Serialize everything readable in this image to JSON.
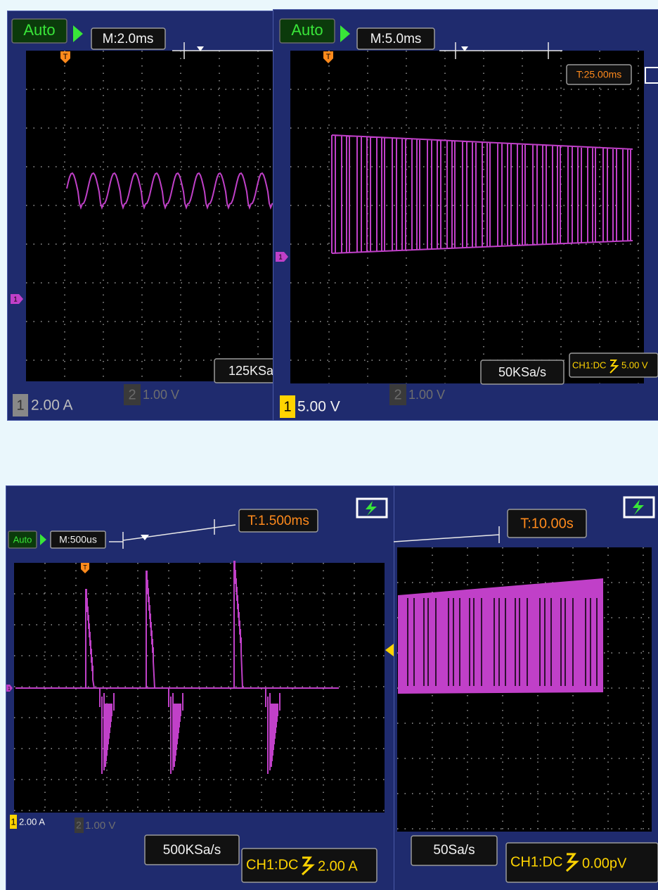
{
  "screens": [
    {
      "mode": "Auto",
      "timebase": "M:2.0ms",
      "trigger_marker": "T",
      "channel_marker": "1",
      "channel1": {
        "number": "1",
        "scale": "2.00 A"
      },
      "channel2": {
        "number": "2",
        "scale": "1.00 V"
      },
      "sample_rate": "125KSa"
    },
    {
      "mode": "Auto",
      "timebase": "M:5.0ms",
      "trigger_marker": "T",
      "channel_marker": "1",
      "trigger_time": "T:25.00ms",
      "channel1": {
        "number": "1",
        "scale": "5.00 V"
      },
      "channel2": {
        "number": "2",
        "scale": "1.00 V"
      },
      "sample_rate": "50KSa/s",
      "trigger_coupling": "CH1:DC",
      "trigger_level": "5.00 V"
    },
    {
      "mode": "Auto",
      "timebase": "M:500us",
      "trigger_marker": "T",
      "channel_marker": "1",
      "trigger_time": "T:1.500ms",
      "channel1": {
        "number": "1",
        "scale": "2.00 A"
      },
      "channel2": {
        "number": "2",
        "scale": "1.00 V"
      },
      "sample_rate": "500KSa/s",
      "trigger_coupling": "CH1:DC",
      "trigger_level": "2.00 A"
    },
    {
      "trigger_time": "T:10.00s",
      "sample_rate": "50Sa/s",
      "trigger_coupling": "CH1:DC",
      "trigger_level": "0.00pV"
    }
  ]
}
